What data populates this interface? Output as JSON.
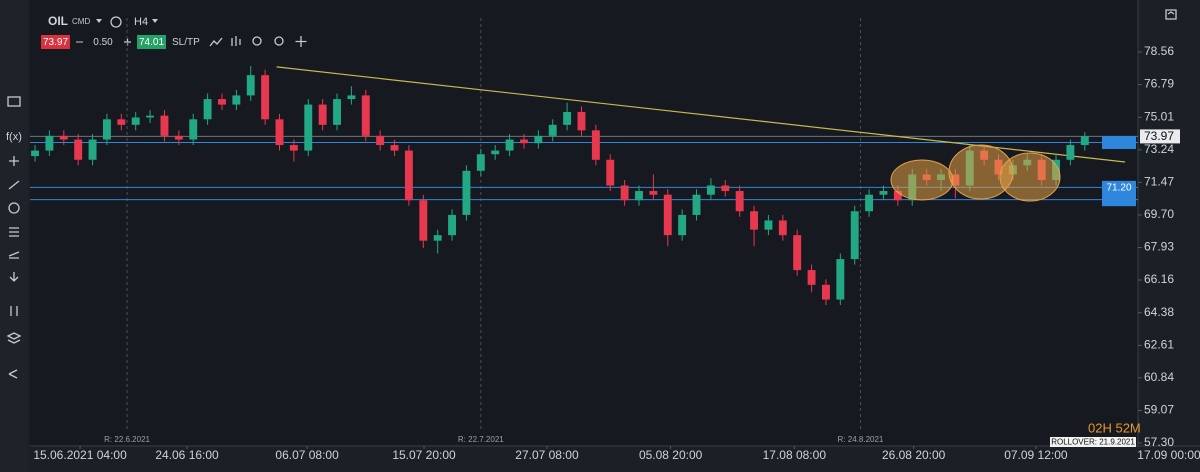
{
  "toolbar": {
    "symbol": "OIL",
    "market": "CMD",
    "timeframe": "H4",
    "bid": "73.97",
    "spread": "0.50",
    "ask": "74.01",
    "sltp": "SL/TP"
  },
  "sidebar": {
    "fx": "f(x)"
  },
  "timer": "02H 52M",
  "rollover": "ROLLOVER: 21.9.2021",
  "chart_data": {
    "type": "candlestick",
    "x": [
      0,
      1,
      2,
      3,
      4,
      5,
      6,
      7,
      8,
      9,
      10,
      11,
      12,
      13,
      14,
      15,
      16,
      17,
      18,
      19,
      20,
      21,
      22,
      23,
      24,
      25,
      26,
      27,
      28,
      29,
      30,
      31,
      32,
      33,
      34,
      35,
      36,
      37,
      38,
      39,
      40,
      41,
      42,
      43,
      44,
      45,
      46,
      47,
      48,
      49,
      50,
      51,
      52,
      53,
      54,
      55,
      56,
      57,
      58,
      59,
      60,
      61,
      62,
      63,
      64,
      65,
      66,
      67,
      68,
      69,
      70,
      71,
      72,
      73
    ],
    "open": [
      72.9,
      73.2,
      74.0,
      73.8,
      72.7,
      73.8,
      74.9,
      74.6,
      75.0,
      75.1,
      74.0,
      73.8,
      74.9,
      76.0,
      75.7,
      76.2,
      77.3,
      74.9,
      73.5,
      73.2,
      75.7,
      74.6,
      76.0,
      76.2,
      74.0,
      73.5,
      73.2,
      70.5,
      68.3,
      68.6,
      69.7,
      72.1,
      73.0,
      73.2,
      73.8,
      73.6,
      74.0,
      74.6,
      75.3,
      74.3,
      72.7,
      71.3,
      70.5,
      71.0,
      70.8,
      68.6,
      69.7,
      70.8,
      71.3,
      71.0,
      69.9,
      68.9,
      69.4,
      68.6,
      66.7,
      65.9,
      65.1,
      67.3,
      69.9,
      70.8,
      71.0,
      70.5,
      71.9,
      71.6,
      71.9,
      71.3,
      73.2,
      72.7,
      71.9,
      72.4,
      72.7,
      71.6,
      72.7,
      73.5
    ],
    "high": [
      73.5,
      74.3,
      74.3,
      74.1,
      74.1,
      75.2,
      75.2,
      75.3,
      75.4,
      75.4,
      74.3,
      75.2,
      76.3,
      76.3,
      76.5,
      77.8,
      77.6,
      75.2,
      73.8,
      76.0,
      76.0,
      76.3,
      76.7,
      76.5,
      74.3,
      73.8,
      73.5,
      70.8,
      68.9,
      70.0,
      72.4,
      73.3,
      73.5,
      74.1,
      74.1,
      74.3,
      74.9,
      75.8,
      75.6,
      74.6,
      73.0,
      71.6,
      71.3,
      71.9,
      71.1,
      70.0,
      71.1,
      71.7,
      71.6,
      71.3,
      70.2,
      69.7,
      69.7,
      68.9,
      67.0,
      66.2,
      67.6,
      70.2,
      71.1,
      71.3,
      71.3,
      72.2,
      72.2,
      72.2,
      72.2,
      73.5,
      73.5,
      73.0,
      72.7,
      73.0,
      73.0,
      73.0,
      73.8,
      74.2
    ],
    "low": [
      72.6,
      72.9,
      73.5,
      72.4,
      72.4,
      73.5,
      74.3,
      74.3,
      74.7,
      73.7,
      73.5,
      73.5,
      74.6,
      75.4,
      75.4,
      75.9,
      74.6,
      73.2,
      72.6,
      72.9,
      74.3,
      74.3,
      75.7,
      73.7,
      73.2,
      72.9,
      70.2,
      67.9,
      67.6,
      68.3,
      69.4,
      71.8,
      72.7,
      72.9,
      73.3,
      73.3,
      73.7,
      74.3,
      74.0,
      72.4,
      71.0,
      70.2,
      70.2,
      70.5,
      68.0,
      68.3,
      69.4,
      70.5,
      70.7,
      69.6,
      68.0,
      68.6,
      68.3,
      66.4,
      65.5,
      64.8,
      64.8,
      67.0,
      69.6,
      70.5,
      70.2,
      70.2,
      71.3,
      71.0,
      70.6,
      71.0,
      72.4,
      71.6,
      71.6,
      72.1,
      71.3,
      71.3,
      72.4,
      73.2
    ],
    "close": [
      73.2,
      74.0,
      73.8,
      72.7,
      73.8,
      74.9,
      74.6,
      75.0,
      75.1,
      74.0,
      73.8,
      74.9,
      76.0,
      75.7,
      76.2,
      77.3,
      74.9,
      73.5,
      73.2,
      75.7,
      74.6,
      76.0,
      76.2,
      74.0,
      73.5,
      73.2,
      70.5,
      68.3,
      68.6,
      69.7,
      72.1,
      73.0,
      73.2,
      73.8,
      73.6,
      74.0,
      74.6,
      75.3,
      74.3,
      72.7,
      71.3,
      70.5,
      71.0,
      70.8,
      68.6,
      69.7,
      70.8,
      71.3,
      71.0,
      69.9,
      68.9,
      69.4,
      68.6,
      66.7,
      65.9,
      65.1,
      67.3,
      69.9,
      70.8,
      71.0,
      70.5,
      71.9,
      71.6,
      71.9,
      71.3,
      73.2,
      72.7,
      71.9,
      72.4,
      72.7,
      71.6,
      72.7,
      73.5,
      73.97
    ],
    "up_color": "#22a884",
    "down_color": "#e8384f",
    "xlim": [
      -0.35,
      76.7
    ],
    "xticks": [
      {
        "value": 3.13,
        "label": "15.06.2021 04:00"
      },
      {
        "value": 10.57,
        "label": "24.06 16:00"
      },
      {
        "value": 18.92,
        "label": "06.07 08:00"
      },
      {
        "value": 27.05,
        "label": "15.07 20:00"
      },
      {
        "value": 35.6,
        "label": "27.07 08:00"
      },
      {
        "value": 44.2,
        "label": "05.08 20:00"
      },
      {
        "value": 52.8,
        "label": "17.08 08:00"
      },
      {
        "value": 61.1,
        "label": "26.08 20:00"
      },
      {
        "value": 69.6,
        "label": "07.09 12:00"
      }
    ],
    "axis_end_label": "17.09 00:00",
    "ylim": [
      57.19,
      80.3
    ],
    "yticks": [
      78.56,
      76.79,
      {
        "value": 75.01,
        "label": "75.01"
      },
      73.24,
      71.47,
      {
        "value": 69.7,
        "label": "69.70"
      },
      67.93,
      66.16,
      64.38,
      62.61,
      60.84,
      59.07,
      {
        "value": 57.3,
        "label": "57.30"
      }
    ],
    "grid": false,
    "current_price": 73.97,
    "levels": [
      {
        "value": 73.64,
        "color": "#2f86dd"
      },
      {
        "value": 71.2,
        "label": "71.20",
        "color": "#2f86dd"
      },
      {
        "value": 70.53,
        "color": "#2f86dd"
      }
    ],
    "trendline": {
      "x": [
        16.8,
        75.8
      ],
      "y": [
        77.75,
        72.58
      ],
      "color": "#c8b850"
    },
    "rollover_markers": [
      {
        "x": 6.4,
        "label": "R: 22.6.2021"
      },
      {
        "x": 31.0,
        "label": "R: 22.7.2021"
      },
      {
        "x": 57.4,
        "label": "R: 24.8.2021"
      }
    ]
  }
}
